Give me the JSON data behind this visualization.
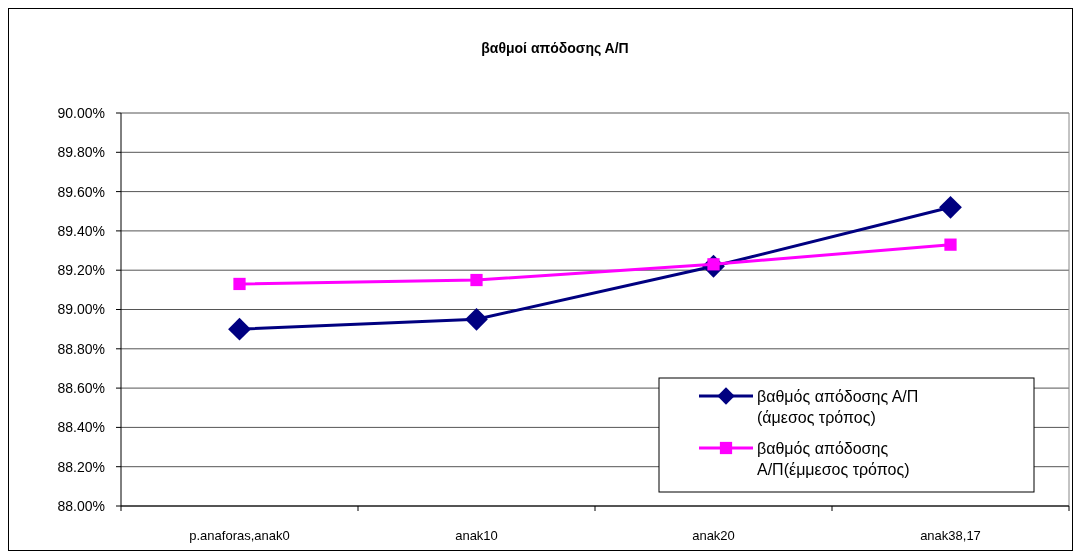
{
  "chart_data": {
    "type": "line",
    "title": "βαθμοί απόδοσης Α/Π",
    "categories": [
      "p.anaforas,anak0",
      "anak10",
      "anak20",
      "anak38,17"
    ],
    "series": [
      {
        "name": "βαθμός απόδοσης Α/Π (άμεσος τρόπος)",
        "color": "#000080",
        "marker": "diamond",
        "values": [
          88.9,
          88.95,
          89.22,
          89.52
        ]
      },
      {
        "name": "βαθμός απόδοσης Α/Π(έμμεσος τρόπος)",
        "color": "#ff00ff",
        "marker": "square",
        "values": [
          89.13,
          89.15,
          89.23,
          89.33
        ]
      }
    ],
    "ylim": [
      88,
      90
    ],
    "yticks": [
      {
        "value": 88,
        "label": "88.00%"
      },
      {
        "value": 88.2,
        "label": "88.20%"
      },
      {
        "value": 88.4,
        "label": "88.40%"
      },
      {
        "value": 88.6,
        "label": "88.60%"
      },
      {
        "value": 88.8,
        "label": "88.80%"
      },
      {
        "value": 89,
        "label": "89.00%"
      },
      {
        "value": 89.2,
        "label": "89.20%"
      },
      {
        "value": 89.4,
        "label": "89.40%"
      },
      {
        "value": 89.6,
        "label": "89.60%"
      },
      {
        "value": 89.8,
        "label": "89.80%"
      },
      {
        "value": 90,
        "label": "90.00%"
      }
    ],
    "grid": "y",
    "legend": "bottom right",
    "line_style": "solid"
  }
}
